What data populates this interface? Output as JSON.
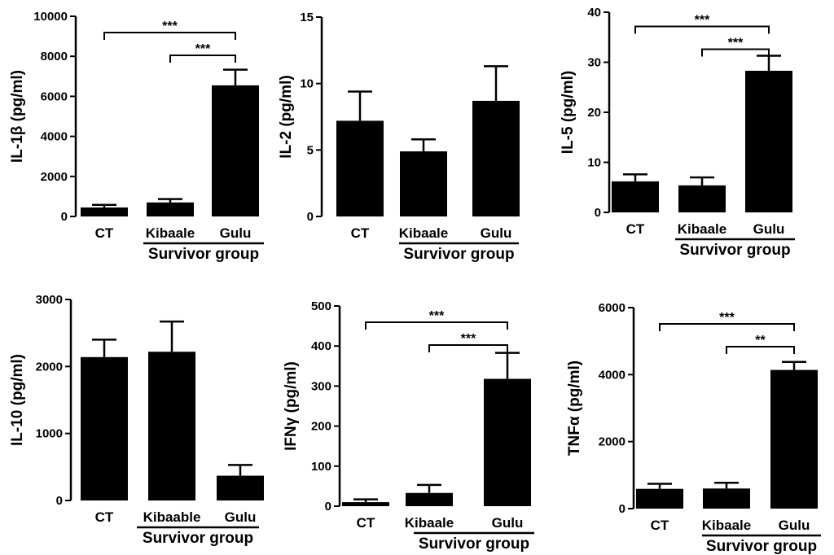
{
  "chart_data": [
    {
      "type": "bar",
      "ylabel": "IL-1β (pg/ml)",
      "categories": [
        "CT",
        "Kibaale",
        "Gulu"
      ],
      "values": [
        450,
        700,
        6550
      ],
      "errors": [
        130,
        170,
        780
      ],
      "ylim": [
        0,
        10000
      ],
      "yticks": [
        0,
        2000,
        4000,
        6000,
        8000,
        10000
      ],
      "group_label": "Survivor group",
      "significance": [
        {
          "from": 0,
          "to": 2,
          "label": "***"
        },
        {
          "from": 1,
          "to": 2,
          "label": "***"
        }
      ]
    },
    {
      "type": "bar",
      "ylabel": "IL-2 (pg/ml)",
      "categories": [
        "CT",
        "Kibaale",
        "Gulu"
      ],
      "values": [
        7.2,
        4.9,
        8.7
      ],
      "errors": [
        2.2,
        0.9,
        2.6
      ],
      "ylim": [
        0,
        15
      ],
      "yticks": [
        0,
        5,
        10,
        15
      ],
      "group_label": "Survivor group",
      "significance": []
    },
    {
      "type": "bar",
      "ylabel": "IL-5 (pg/ml)",
      "categories": [
        "CT",
        "Kibaale",
        "Gulu"
      ],
      "values": [
        6.2,
        5.4,
        28.3
      ],
      "errors": [
        1.4,
        1.6,
        3.0
      ],
      "ylim": [
        0,
        40
      ],
      "yticks": [
        0,
        10,
        20,
        30,
        40
      ],
      "group_label": "Survivor group",
      "significance": [
        {
          "from": 0,
          "to": 2,
          "label": "***"
        },
        {
          "from": 1,
          "to": 2,
          "label": "***"
        }
      ]
    },
    {
      "type": "bar",
      "ylabel": "IL-10 (pg/ml)",
      "categories": [
        "CT",
        "Kibaable",
        "Gulu"
      ],
      "values": [
        2140,
        2220,
        370
      ],
      "errors": [
        260,
        450,
        160
      ],
      "ylim": [
        0,
        3000
      ],
      "yticks": [
        0,
        1000,
        2000,
        3000
      ],
      "group_label": "Survivor group",
      "significance": []
    },
    {
      "type": "bar",
      "ylabel": "IFNγ (pg/ml)",
      "categories": [
        "CT",
        "Kibaale",
        "Gulu"
      ],
      "values": [
        10,
        33,
        318
      ],
      "errors": [
        7,
        20,
        65
      ],
      "ylim": [
        0,
        500
      ],
      "yticks": [
        0,
        100,
        200,
        300,
        400,
        500
      ],
      "group_label": "Survivor group",
      "significance": [
        {
          "from": 0,
          "to": 2,
          "label": "***"
        },
        {
          "from": 1,
          "to": 2,
          "label": "***"
        }
      ]
    },
    {
      "type": "bar",
      "ylabel": "TNFα (pg/ml)",
      "categories": [
        "CT",
        "Kibaale",
        "Gulu"
      ],
      "values": [
        590,
        600,
        4140
      ],
      "errors": [
        150,
        170,
        240
      ],
      "ylim": [
        0,
        6000
      ],
      "yticks": [
        0,
        2000,
        4000,
        6000
      ],
      "group_label": "Survivor group",
      "significance": [
        {
          "from": 0,
          "to": 2,
          "label": "***"
        },
        {
          "from": 1,
          "to": 2,
          "label": "**"
        }
      ]
    }
  ]
}
